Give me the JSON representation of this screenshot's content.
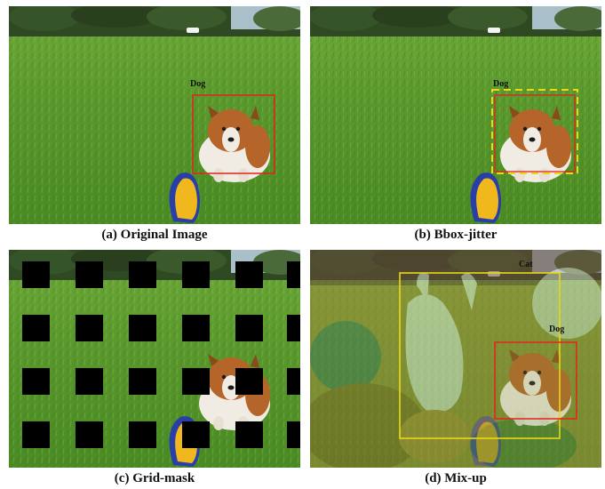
{
  "panels": {
    "original": {
      "caption": "(a) Original Image",
      "label": "Dog"
    },
    "jitter": {
      "caption": "(b) Bbox-jitter",
      "label": "Dog"
    },
    "gridmask": {
      "caption": "(c) Grid-mask"
    },
    "mixup": {
      "caption": "(d) Mix-up",
      "label_cat": "Cat",
      "label_dog": "Dog"
    }
  },
  "colors": {
    "grass": "#5c9a2e",
    "grass_dark": "#3f7a1d",
    "tree": "#2f4a22",
    "dog_orange": "#b6652a",
    "dog_white": "#f1ece3",
    "bbox_red": "#e0241b",
    "bbox_yellow": "#ecd815",
    "frisbee": "#f0b81c",
    "frisbee_rim": "#2a3ea8",
    "mask": "#000000"
  }
}
